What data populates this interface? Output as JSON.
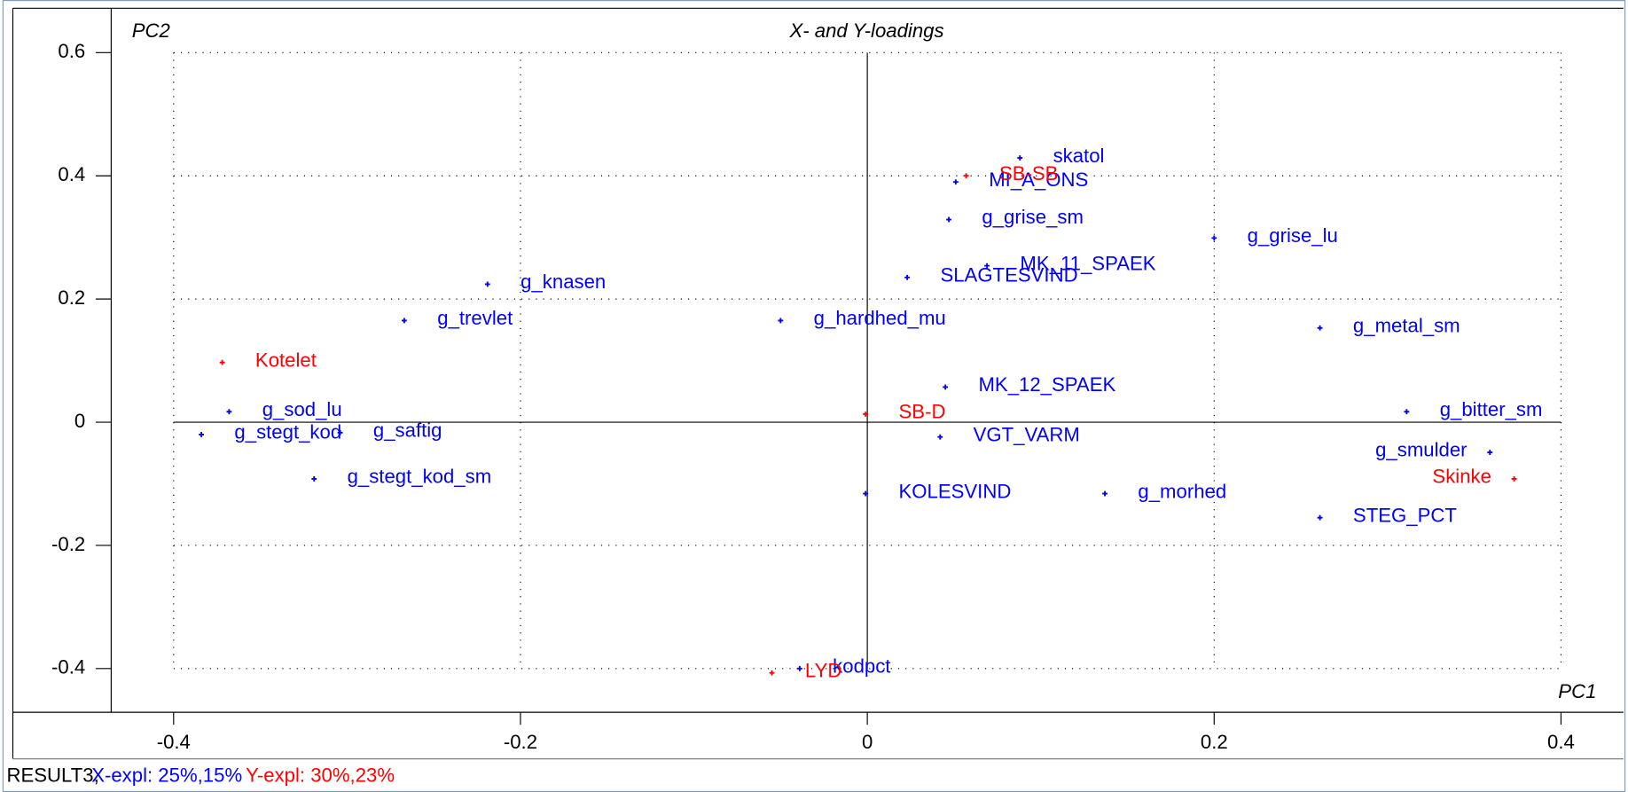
{
  "chart_data": {
    "type": "scatter",
    "title": "X- and Y-loadings",
    "x_label": "PC1",
    "y_label": "PC2",
    "xlim": [
      -0.436,
      0.436
    ],
    "ylim": [
      -0.471,
      0.672
    ],
    "xticks": [
      -0.4,
      -0.2,
      0,
      0.2,
      0.4
    ],
    "yticks": [
      0.6,
      0.4,
      0.2,
      0,
      -0.2,
      -0.4
    ],
    "grid": true,
    "series": [
      {
        "color": "#0000ff",
        "labels": [
          "skatol",
          "MI_A_ONS",
          "g_grise_sm",
          "MK_11_SPAEK",
          "SLAGTESVIND",
          "g_grise_lu",
          "g_knasen",
          "g_trevlet",
          "g_hardhed_mu",
          "g_metal_sm",
          "MK_12_SPAEK",
          "g_sod_lu",
          "g_bitter_sm",
          "g_stegt_kod",
          "g_saftig",
          "VGT_VARM",
          "g_smulder",
          "g_stegt_kod_sm",
          "KOLESVIND",
          "g_morhed",
          "STEG_PCT",
          "kodpct"
        ],
        "x": [
          0.088,
          0.051,
          0.047,
          0.069,
          0.023,
          0.2,
          -0.219,
          -0.267,
          -0.05,
          0.261,
          0.045,
          -0.368,
          0.311,
          -0.384,
          -0.304,
          0.042,
          0.359,
          -0.319,
          -0.001,
          0.137,
          0.261,
          -0.039
        ],
        "values": [
          0.429,
          0.39,
          0.329,
          0.254,
          0.235,
          0.299,
          0.224,
          0.165,
          0.165,
          0.153,
          0.057,
          0.017,
          0.017,
          -0.02,
          -0.017,
          -0.024,
          -0.049,
          -0.092,
          -0.116,
          -0.116,
          -0.155,
          -0.4
        ]
      },
      {
        "color": "#ff0000",
        "labels": [
          "SB-SB",
          "Kotelet",
          "SB-D",
          "Skinke",
          "LYD"
        ],
        "x": [
          0.057,
          -0.372,
          -0.001,
          0.373,
          -0.055
        ],
        "values": [
          0.4,
          0.097,
          0.013,
          -0.092,
          -0.407
        ]
      }
    ]
  },
  "status_bar": {
    "dataset": "RESULT3,",
    "x_expl": "X-expl: 25%,15%",
    "y_expl": "Y-expl: 30%,23%"
  }
}
